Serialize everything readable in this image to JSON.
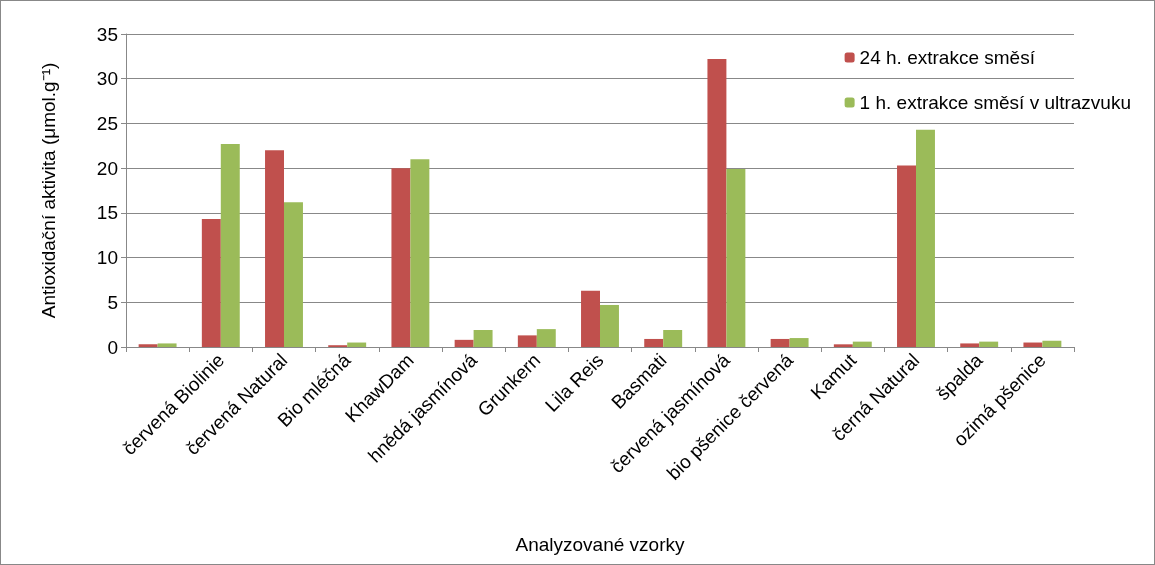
{
  "chart_data": {
    "type": "bar",
    "xlabel": "Analyzované vzorky",
    "ylabel": "Antioxidační aktivita (μmol.g⁻¹)",
    "categories": [
      null,
      "červená Biolinie",
      "červená Natural",
      "Bio mléčná",
      "KhawDam",
      "hnědá jasmínová",
      "Grunkern",
      "Lila Reis",
      "Basmati",
      "červená jasmínová",
      "bio pšenice červená",
      "Kamut",
      "černá Natural",
      "špalda",
      "ozimá pšenice"
    ],
    "series": [
      {
        "name": "24 h. extrakce směsí",
        "color": "#c0504d",
        "values": [
          0.3,
          14.3,
          22.0,
          0.2,
          20.0,
          0.8,
          1.3,
          6.3,
          0.9,
          32.2,
          0.9,
          0.3,
          20.3,
          0.4,
          0.5
        ]
      },
      {
        "name": "1 h. extrakce směsí v ultrazvuku",
        "color": "#9bbb59",
        "values": [
          0.4,
          22.7,
          16.2,
          0.5,
          21.0,
          1.9,
          2.0,
          4.7,
          1.9,
          19.9,
          1.0,
          0.6,
          24.3,
          0.6,
          0.7
        ]
      }
    ],
    "ylim": [
      0,
      35
    ],
    "yticks": [
      0,
      5,
      10,
      15,
      20,
      25,
      30,
      35
    ],
    "grid": "y",
    "legend": "top right"
  }
}
